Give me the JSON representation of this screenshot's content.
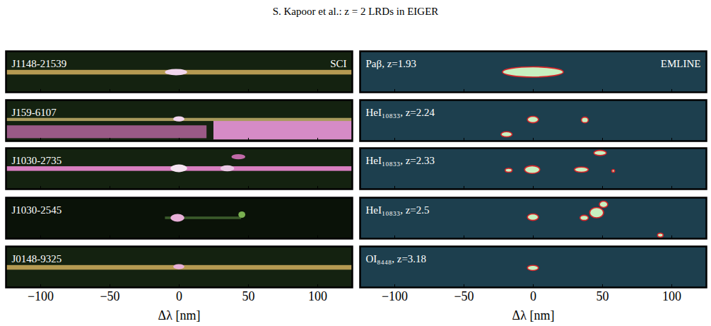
{
  "header": {
    "title": "S. Kapoor et al.: z = 2 LRDs in EIGER"
  },
  "chart_data": [
    {
      "type": "image",
      "title": "J1148-21539",
      "annotations": [
        "SCI"
      ],
      "xlim": [
        -125,
        125
      ],
      "ylim": [
        -8,
        8
      ],
      "xticks": [
        -100,
        -50,
        0,
        50,
        100
      ],
      "tick_labels": false,
      "color": "#142210",
      "regions": [
        {
          "x1": -125,
          "x2": 125,
          "y1": -1.2,
          "y2": 0.6,
          "color": "#b59a52"
        }
      ],
      "blobs": [
        {
          "x1": -10,
          "x2": 6,
          "y1": -1.5,
          "y2": 1,
          "color": "#f2d6ee"
        }
      ]
    },
    {
      "type": "image",
      "title": "Paβ, z=1.93",
      "annotations": [
        "EMLINE"
      ],
      "xlim": [
        -125,
        125
      ],
      "ylim": [
        -8,
        8
      ],
      "xticks": [
        -100,
        -50,
        0,
        50,
        100
      ],
      "tick_labels": false,
      "color": "#1d3f4e",
      "marker": "contour",
      "regions": [],
      "blobs": [
        {
          "x1": -22,
          "x2": 22,
          "y1": -2.2,
          "y2": 1.8,
          "color": "#c8f0c0"
        }
      ]
    },
    {
      "type": "image",
      "title": "J159-6107",
      "annotations": [],
      "xlim": [
        -125,
        125
      ],
      "ylim": [
        -8,
        8
      ],
      "xticks": [
        -100,
        -50,
        0,
        50,
        100
      ],
      "tick_labels": false,
      "color": "#142210",
      "regions": [
        {
          "x1": -125,
          "x2": 20,
          "y1": -7,
          "y2": -2,
          "color": "#9a5a86"
        },
        {
          "x1": 25,
          "x2": 125,
          "y1": -7.5,
          "y2": 0.5,
          "color": "#d58bc6"
        },
        {
          "x1": -125,
          "x2": 125,
          "y1": -0.3,
          "y2": 0.9,
          "color": "#a89a5c"
        }
      ],
      "blobs": [
        {
          "x1": -4,
          "x2": 4,
          "y1": -0.5,
          "y2": 1.5,
          "color": "#f2d6ee"
        }
      ]
    },
    {
      "type": "image",
      "title": "HeI₁₀₈₃₃, z=2.24",
      "annotations": [],
      "xlim": [
        -125,
        125
      ],
      "ylim": [
        -8,
        8
      ],
      "xticks": [
        -100,
        -50,
        0,
        50,
        100
      ],
      "tick_labels": false,
      "color": "#1d3f4e",
      "marker": "contour",
      "regions": [],
      "blobs": [
        {
          "x1": -4,
          "x2": 4,
          "y1": -1,
          "y2": 1.5,
          "color": "#c8f0c0"
        },
        {
          "x1": 35,
          "x2": 40,
          "y1": -1,
          "y2": 1.2,
          "color": "#c8f0c0"
        },
        {
          "x1": -23,
          "x2": -15,
          "y1": -6.5,
          "y2": -4.5,
          "color": "#c8f0c0"
        }
      ]
    },
    {
      "type": "image",
      "title": "J1030-2735",
      "annotations": [],
      "xlim": [
        -125,
        125
      ],
      "ylim": [
        -8,
        8
      ],
      "xticks": [
        -100,
        -50,
        0,
        50,
        100
      ],
      "tick_labels": false,
      "color": "#142210",
      "regions": [
        {
          "x1": -125,
          "x2": 125,
          "y1": -1,
          "y2": 0.8,
          "color": "#d87fc0"
        }
      ],
      "blobs": [
        {
          "x1": -6,
          "x2": 6,
          "y1": -1.5,
          "y2": 1.5,
          "color": "#f4e4f0"
        },
        {
          "x1": 30,
          "x2": 40,
          "y1": -1.2,
          "y2": 1.2,
          "color": "#eac8e4"
        },
        {
          "x1": 38,
          "x2": 48,
          "y1": 3.5,
          "y2": 5.5,
          "color": "#c06aa8"
        }
      ]
    },
    {
      "type": "image",
      "title": "HeI₁₀₈₃₃, z=2.33",
      "annotations": [],
      "xlim": [
        -125,
        125
      ],
      "ylim": [
        -8,
        8
      ],
      "xticks": [
        -100,
        -50,
        0,
        50,
        100
      ],
      "tick_labels": false,
      "color": "#1d3f4e",
      "marker": "contour",
      "regions": [],
      "blobs": [
        {
          "x1": -6,
          "x2": 5,
          "y1": -2,
          "y2": 1,
          "color": "#c8f0c0"
        },
        {
          "x1": -20,
          "x2": -15,
          "y1": -1.5,
          "y2": 0,
          "color": "#c8f0c0"
        },
        {
          "x1": 30,
          "x2": 40,
          "y1": -1.5,
          "y2": 0.5,
          "color": "#c8f0c0"
        },
        {
          "x1": 44,
          "x2": 53,
          "y1": 5,
          "y2": 7,
          "color": "#c8f0c0"
        },
        {
          "x1": 57,
          "x2": 59,
          "y1": -1.5,
          "y2": -0.5,
          "color": "#c8f0c0"
        }
      ]
    },
    {
      "type": "image",
      "title": "J1030-2545",
      "annotations": [],
      "xlim": [
        -125,
        125
      ],
      "ylim": [
        -8,
        8
      ],
      "xticks": [
        -100,
        -50,
        0,
        50,
        100
      ],
      "tick_labels": false,
      "color": "#0a1208",
      "regions": [
        {
          "x1": -10,
          "x2": 45,
          "y1": -0.5,
          "y2": 0.5,
          "color": "#3a5a2a"
        }
      ],
      "blobs": [
        {
          "x1": -6,
          "x2": 4,
          "y1": -1.5,
          "y2": 1.5,
          "color": "#e8b0d8"
        },
        {
          "x1": 43,
          "x2": 48,
          "y1": 0,
          "y2": 2.5,
          "color": "#7ab050"
        }
      ]
    },
    {
      "type": "image",
      "title": "HeI₁₀₈₃₃, z=2.5",
      "annotations": [],
      "xlim": [
        -125,
        125
      ],
      "ylim": [
        -8,
        8
      ],
      "xticks": [
        -100,
        -50,
        0,
        50,
        100
      ],
      "tick_labels": false,
      "color": "#1d3f4e",
      "marker": "contour",
      "regions": [],
      "blobs": [
        {
          "x1": -4,
          "x2": 4,
          "y1": -1,
          "y2": 1.5,
          "color": "#c8f0c0"
        },
        {
          "x1": 41,
          "x2": 51,
          "y1": 0,
          "y2": 4,
          "color": "#c8f0c0"
        },
        {
          "x1": 34,
          "x2": 40,
          "y1": -1,
          "y2": 1,
          "color": "#c8f0c0"
        },
        {
          "x1": 48,
          "x2": 54,
          "y1": 4,
          "y2": 6.5,
          "color": "#c8f0c0"
        },
        {
          "x1": 90,
          "x2": 94,
          "y1": -7.5,
          "y2": -6,
          "color": "#c8f0c0"
        }
      ]
    },
    {
      "type": "image",
      "title": "J0148-9325",
      "annotations": [],
      "xlim": [
        -125,
        125
      ],
      "ylim": [
        -8,
        8
      ],
      "xticks": [
        {
          "value": -100,
          "label": "−100"
        },
        {
          "value": -50,
          "label": "−50"
        },
        0,
        50,
        100
      ],
      "tick_labels": "x",
      "xlabel": "Δλ [nm]",
      "color": "#142210",
      "regions": [
        {
          "x1": -125,
          "x2": 125,
          "y1": -1.2,
          "y2": 0.6,
          "color": "#b59a52"
        }
      ],
      "blobs": [
        {
          "x1": -4,
          "x2": 4,
          "y1": -1,
          "y2": 1,
          "color": "#e8b0d8"
        }
      ]
    },
    {
      "type": "image",
      "title": "OI₈₄₄₈, z=3.18",
      "annotations": [],
      "xlim": [
        -125,
        125
      ],
      "ylim": [
        -8,
        8
      ],
      "xticks": [
        {
          "value": -100,
          "label": "−100"
        },
        {
          "value": -50,
          "label": "−50"
        },
        0,
        50,
        100
      ],
      "tick_labels": "x",
      "xlabel": "Δλ [nm]",
      "color": "#1d3f4e",
      "marker": "contour",
      "regions": [],
      "blobs": [
        {
          "x1": -4,
          "x2": 4,
          "y1": -1.5,
          "y2": 0.5,
          "color": "#c8f0c0"
        }
      ]
    }
  ]
}
